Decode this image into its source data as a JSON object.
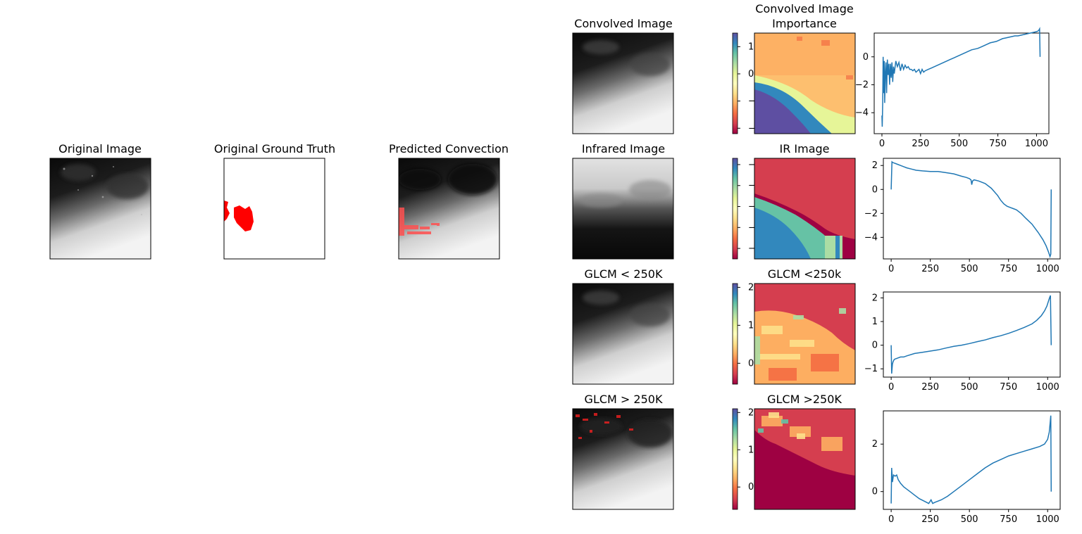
{
  "figure": {
    "titles": {
      "original_image": "Original Image",
      "original_ground_truth": "Original Ground Truth",
      "predicted_convection": "Predicted Convection",
      "convolved_image": "Convolved Image",
      "convolved_importance_line1": "Convolved Image",
      "convolved_importance_line2": "Importance",
      "infrared_image": "Infrared Image",
      "ir_image": "IR Image",
      "glcm_lt_250k": "GLCM < 250K",
      "glcm_lt_250k_importance": "GLCM <250k",
      "glcm_gt_250k": "GLCM > 250K",
      "glcm_gt_250k_importance": "GLCM >250K"
    },
    "colormap_name": "Spectral",
    "overlay_color": "#ff0000"
  },
  "chart_data": [
    {
      "type": "heatmap",
      "id": "colorbar-convolved",
      "orientation": "vertical",
      "ylim": [
        -2.2,
        1.5
      ],
      "ticks": [
        -2,
        -1,
        0,
        1
      ],
      "tick_labels": [
        "−2",
        "−1",
        "0",
        "1"
      ]
    },
    {
      "type": "heatmap",
      "id": "colorbar-ir",
      "orientation": "vertical",
      "ylim": [
        -5.5,
        -0.7
      ],
      "ticks": [
        -5,
        -4,
        -3,
        -2,
        -1
      ],
      "tick_labels": [
        "−5",
        "−4",
        "−3",
        "−2",
        "−1"
      ]
    },
    {
      "type": "heatmap",
      "id": "colorbar-glcm-lt",
      "orientation": "vertical",
      "ylim": [
        -0.55,
        2.1
      ],
      "ticks": [
        0,
        1,
        2
      ],
      "tick_labels": [
        "0",
        "1",
        "2"
      ]
    },
    {
      "type": "heatmap",
      "id": "colorbar-glcm-gt",
      "orientation": "vertical",
      "ylim": [
        -0.6,
        2.1
      ],
      "ticks": [
        0,
        1,
        2
      ],
      "tick_labels": [
        "0",
        "1",
        "2"
      ]
    },
    {
      "type": "line",
      "id": "line-convolved",
      "xlim": [
        -50,
        1080
      ],
      "ylim": [
        -5.5,
        1.7
      ],
      "xticks": [
        0,
        250,
        500,
        750,
        1000
      ],
      "xtick_labels": [
        "0",
        "250",
        "500",
        "750",
        "1000"
      ],
      "yticks": [
        -4,
        -2,
        0
      ],
      "ytick_labels": [
        "−4",
        "−2",
        "0"
      ],
      "color": "#1f77b4",
      "x": [
        0,
        2,
        5,
        8,
        12,
        15,
        18,
        22,
        26,
        30,
        35,
        40,
        45,
        50,
        55,
        60,
        65,
        70,
        75,
        80,
        90,
        100,
        110,
        120,
        130,
        140,
        150,
        160,
        170,
        180,
        190,
        200,
        210,
        220,
        230,
        240,
        250,
        260,
        270,
        280,
        300,
        320,
        340,
        360,
        380,
        400,
        420,
        440,
        460,
        480,
        500,
        520,
        540,
        560,
        580,
        600,
        620,
        640,
        660,
        680,
        700,
        720,
        740,
        760,
        780,
        800,
        820,
        840,
        860,
        880,
        900,
        920,
        940,
        960,
        980,
        1000,
        1010,
        1015,
        1020,
        1023
      ],
      "y": [
        -4.2,
        -5.0,
        -3.2,
        0.0,
        -2.6,
        -0.3,
        -3.3,
        -1.2,
        -0.4,
        -2.6,
        -0.2,
        -1.3,
        -0.5,
        -2.0,
        -0.5,
        -1.5,
        -0.4,
        -1.8,
        -0.7,
        -1.2,
        -0.3,
        -0.7,
        -0.4,
        -1.0,
        -0.5,
        -0.9,
        -0.6,
        -0.8,
        -0.7,
        -0.9,
        -0.9,
        -1.0,
        -0.9,
        -1.1,
        -1.0,
        -0.9,
        -1.2,
        -0.9,
        -1.1,
        -1.0,
        -0.9,
        -0.8,
        -0.7,
        -0.6,
        -0.5,
        -0.4,
        -0.3,
        -0.2,
        -0.1,
        0.0,
        0.1,
        0.2,
        0.3,
        0.4,
        0.5,
        0.55,
        0.6,
        0.7,
        0.8,
        0.9,
        1.0,
        1.05,
        1.1,
        1.2,
        1.3,
        1.35,
        1.4,
        1.45,
        1.5,
        1.5,
        1.55,
        1.6,
        1.65,
        1.7,
        1.75,
        1.8,
        1.85,
        1.9,
        2.0,
        0.0
      ]
    },
    {
      "type": "line",
      "id": "line-ir",
      "xlim": [
        -50,
        1080
      ],
      "ylim": [
        -5.8,
        2.6
      ],
      "xticks": [
        0,
        250,
        500,
        750,
        1000
      ],
      "xtick_labels": [
        "0",
        "250",
        "500",
        "750",
        "1000"
      ],
      "yticks": [
        -4,
        -2,
        0,
        2
      ],
      "ytick_labels": [
        "−4",
        "−2",
        "0",
        "2"
      ],
      "color": "#1f77b4",
      "x": [
        0,
        5,
        10,
        20,
        40,
        60,
        80,
        100,
        130,
        160,
        200,
        250,
        300,
        350,
        400,
        450,
        480,
        500,
        510,
        515,
        520,
        530,
        560,
        600,
        640,
        680,
        700,
        720,
        740,
        760,
        780,
        800,
        830,
        860,
        900,
        940,
        970,
        990,
        1005,
        1015,
        1020,
        1023
      ],
      "y": [
        0.0,
        2.3,
        2.25,
        2.2,
        2.1,
        2.0,
        1.9,
        1.8,
        1.7,
        1.6,
        1.55,
        1.5,
        1.5,
        1.4,
        1.3,
        1.1,
        1.0,
        0.9,
        0.8,
        0.4,
        0.7,
        0.8,
        0.7,
        0.5,
        0.1,
        -0.5,
        -0.9,
        -1.2,
        -1.4,
        -1.5,
        -1.6,
        -1.7,
        -2.0,
        -2.4,
        -2.9,
        -3.6,
        -4.2,
        -4.7,
        -5.2,
        -5.6,
        -5.4,
        0.0
      ]
    },
    {
      "type": "line",
      "id": "line-glcm-lt",
      "xlim": [
        -50,
        1080
      ],
      "ylim": [
        -1.35,
        2.25
      ],
      "xticks": [
        0,
        250,
        500,
        750,
        1000
      ],
      "xtick_labels": [
        "0",
        "250",
        "500",
        "750",
        "1000"
      ],
      "yticks": [
        -1,
        0,
        1,
        2
      ],
      "ytick_labels": [
        "−1",
        "0",
        "1",
        "2"
      ],
      "color": "#1f77b4",
      "x": [
        0,
        3,
        8,
        12,
        20,
        40,
        60,
        80,
        100,
        150,
        200,
        250,
        300,
        350,
        400,
        450,
        500,
        550,
        600,
        650,
        700,
        750,
        800,
        850,
        900,
        930,
        960,
        980,
        995,
        1005,
        1012,
        1018,
        1023
      ],
      "y": [
        0.0,
        -1.2,
        -0.8,
        -0.7,
        -0.6,
        -0.55,
        -0.5,
        -0.5,
        -0.45,
        -0.35,
        -0.3,
        -0.25,
        -0.2,
        -0.12,
        -0.05,
        0.0,
        0.07,
        0.15,
        0.22,
        0.32,
        0.4,
        0.5,
        0.62,
        0.75,
        0.9,
        1.05,
        1.25,
        1.45,
        1.65,
        1.85,
        2.0,
        2.1,
        0.0
      ]
    },
    {
      "type": "line",
      "id": "line-glcm-gt",
      "xlim": [
        -50,
        1080
      ],
      "ylim": [
        -0.75,
        3.4
      ],
      "xticks": [
        0,
        250,
        500,
        750,
        1000
      ],
      "xtick_labels": [
        "0",
        "250",
        "500",
        "750",
        "1000"
      ],
      "yticks": [
        0,
        2
      ],
      "ytick_labels": [
        "0",
        "2"
      ],
      "color": "#1f77b4",
      "x": [
        0,
        3,
        8,
        15,
        25,
        35,
        45,
        60,
        80,
        100,
        120,
        150,
        180,
        210,
        240,
        255,
        265,
        280,
        320,
        360,
        400,
        450,
        500,
        550,
        600,
        650,
        700,
        750,
        800,
        850,
        900,
        950,
        980,
        1000,
        1010,
        1016,
        1020,
        1023
      ],
      "y": [
        -0.5,
        1.0,
        0.4,
        0.7,
        0.65,
        0.7,
        0.5,
        0.35,
        0.2,
        0.1,
        0.0,
        -0.15,
        -0.3,
        -0.4,
        -0.5,
        -0.35,
        -0.5,
        -0.45,
        -0.35,
        -0.2,
        0.0,
        0.25,
        0.5,
        0.75,
        1.0,
        1.2,
        1.35,
        1.5,
        1.6,
        1.7,
        1.8,
        1.9,
        2.0,
        2.2,
        2.5,
        2.9,
        3.2,
        0.0
      ]
    }
  ]
}
